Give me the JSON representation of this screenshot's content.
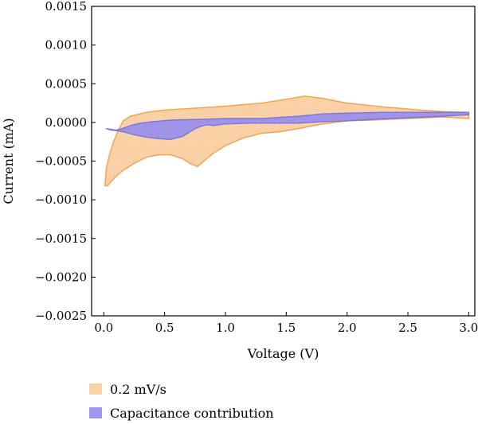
{
  "chart_data": {
    "type": "area",
    "xlabel": "Voltage (V)",
    "ylabel": "Current (mA)",
    "xlim": [
      -0.1,
      3.05
    ],
    "ylim": [
      -0.0025,
      0.0015
    ],
    "x_ticks": [
      0.0,
      0.5,
      1.0,
      1.5,
      2.0,
      2.5,
      3.0
    ],
    "x_tick_labels": [
      "0.0",
      "0.5",
      "1.0",
      "1.5",
      "2.0",
      "2.5",
      "3.0"
    ],
    "y_ticks": [
      0.0015,
      0.001,
      0.0005,
      0.0,
      -0.0005,
      -0.001,
      -0.0015,
      -0.002,
      -0.0025
    ],
    "y_tick_labels": [
      "0.0015",
      "0.0010",
      "0.0005",
      "0.0000",
      "−0.0005",
      "−0.0010",
      "−0.0015",
      "−0.0020",
      "−0.0025"
    ],
    "grid": false,
    "legend_position": "bottom-left outside",
    "series": [
      {
        "name": "0.2 mV/s",
        "color": "#f5a04a",
        "fill": "#fbd3a8",
        "boundary": [
          [
            0.01,
            -0.00082
          ],
          [
            0.02,
            -0.0006
          ],
          [
            0.05,
            -0.0004
          ],
          [
            0.08,
            -0.00025
          ],
          [
            0.12,
            -0.0001
          ],
          [
            0.16,
            2e-05
          ],
          [
            0.22,
            8e-05
          ],
          [
            0.35,
            0.00013
          ],
          [
            0.5,
            0.00016
          ],
          [
            0.7,
            0.00018
          ],
          [
            1.0,
            0.00021
          ],
          [
            1.3,
            0.00025
          ],
          [
            1.5,
            0.0003
          ],
          [
            1.65,
            0.00034
          ],
          [
            1.8,
            0.00031
          ],
          [
            2.0,
            0.00025
          ],
          [
            2.3,
            0.0002
          ],
          [
            2.6,
            0.00016
          ],
          [
            2.8,
            0.00014
          ],
          [
            3.0,
            0.00013
          ],
          [
            3.0,
            5e-05
          ],
          [
            2.8,
            7e-05
          ],
          [
            2.5,
            5e-05
          ],
          [
            2.2,
            3e-05
          ],
          [
            2.0,
            2e-05
          ],
          [
            1.8,
            -2e-05
          ],
          [
            1.6,
            -8e-05
          ],
          [
            1.45,
            -0.00012
          ],
          [
            1.3,
            -0.00014
          ],
          [
            1.15,
            -0.0002
          ],
          [
            1.0,
            -0.0003
          ],
          [
            0.9,
            -0.0004
          ],
          [
            0.8,
            -0.00053
          ],
          [
            0.77,
            -0.00057
          ],
          [
            0.72,
            -0.00054
          ],
          [
            0.65,
            -0.00047
          ],
          [
            0.55,
            -0.00042
          ],
          [
            0.45,
            -0.00042
          ],
          [
            0.35,
            -0.00045
          ],
          [
            0.25,
            -0.00053
          ],
          [
            0.15,
            -0.00063
          ],
          [
            0.08,
            -0.00073
          ],
          [
            0.03,
            -0.00082
          ]
        ]
      },
      {
        "name": "Capacitance contribution",
        "color": "#7b73e0",
        "fill": "#9b94f0",
        "boundary": [
          [
            0.02,
            -8e-05
          ],
          [
            0.06,
            -9e-05
          ],
          [
            0.1,
            -0.0001
          ],
          [
            0.15,
            -8e-05
          ],
          [
            0.22,
            -4e-05
          ],
          [
            0.3,
            -1e-05
          ],
          [
            0.4,
            1e-05
          ],
          [
            0.55,
            3e-05
          ],
          [
            0.8,
            4e-05
          ],
          [
            1.0,
            5e-05
          ],
          [
            1.3,
            5e-05
          ],
          [
            1.6,
            8e-05
          ],
          [
            1.8,
            0.00011
          ],
          [
            2.0,
            0.00012
          ],
          [
            2.3,
            0.00013
          ],
          [
            2.6,
            0.00013
          ],
          [
            2.85,
            0.00013
          ],
          [
            3.0,
            0.00013
          ],
          [
            3.0,
            0.0001
          ],
          [
            2.8,
            8e-05
          ],
          [
            2.5,
            6e-05
          ],
          [
            2.2,
            4e-05
          ],
          [
            2.0,
            2e-05
          ],
          [
            1.8,
            1e-05
          ],
          [
            1.6,
            -1e-05
          ],
          [
            1.4,
            -1e-05
          ],
          [
            1.2,
            -1e-05
          ],
          [
            1.0,
            -2e-05
          ],
          [
            0.9,
            -4e-05
          ],
          [
            0.85,
            -3e-05
          ],
          [
            0.8,
            -5e-05
          ],
          [
            0.75,
            -8e-05
          ],
          [
            0.65,
            -0.00018
          ],
          [
            0.55,
            -0.00022
          ],
          [
            0.45,
            -0.00021
          ],
          [
            0.35,
            -0.00019
          ],
          [
            0.25,
            -0.00016
          ],
          [
            0.18,
            -0.00013
          ],
          [
            0.12,
            -0.00011
          ],
          [
            0.06,
            -0.0001
          ]
        ]
      }
    ]
  }
}
